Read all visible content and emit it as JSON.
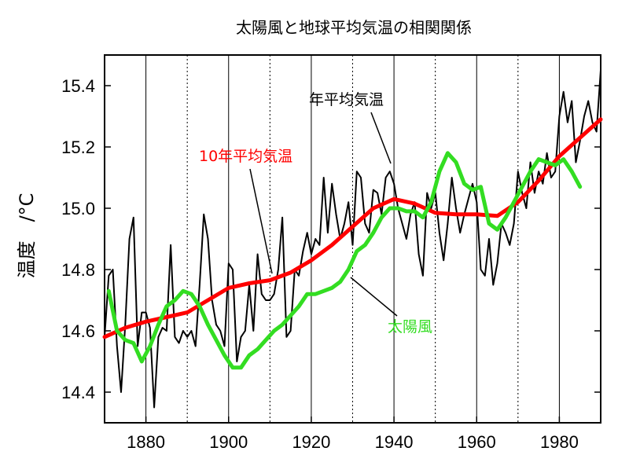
{
  "chart_data": {
    "type": "line",
    "title": "太陽風と地球平均気温の相関関係",
    "xlabel": "",
    "ylabel": "温度　/°C",
    "xlim": [
      1870,
      1990
    ],
    "ylim": [
      14.3,
      15.5
    ],
    "x_ticks": [
      1880,
      1900,
      1920,
      1940,
      1960,
      1980
    ],
    "y_ticks": [
      14.4,
      14.6,
      14.8,
      15.0,
      15.2,
      15.4
    ],
    "grid": "vertical lines every 10 years (solid at 20-year marks, dotted between)",
    "annotations": [
      {
        "text": "年平均気温",
        "color": "#000000"
      },
      {
        "text": "10年平均気温",
        "color": "#ff0000"
      },
      {
        "text": "太陽風",
        "color": "#33dd22"
      }
    ],
    "series": [
      {
        "name": "年平均気温",
        "color": "#000000",
        "x": [
          1870,
          1871,
          1872,
          1873,
          1874,
          1875,
          1876,
          1877,
          1878,
          1879,
          1880,
          1881,
          1882,
          1883,
          1884,
          1885,
          1886,
          1887,
          1888,
          1889,
          1890,
          1891,
          1892,
          1893,
          1894,
          1895,
          1896,
          1897,
          1898,
          1899,
          1900,
          1901,
          1902,
          1903,
          1904,
          1905,
          1906,
          1907,
          1908,
          1909,
          1910,
          1911,
          1912,
          1913,
          1914,
          1915,
          1916,
          1917,
          1918,
          1919,
          1920,
          1921,
          1922,
          1923,
          1924,
          1925,
          1926,
          1927,
          1928,
          1929,
          1930,
          1931,
          1932,
          1933,
          1934,
          1935,
          1936,
          1937,
          1938,
          1939,
          1940,
          1941,
          1942,
          1943,
          1944,
          1945,
          1946,
          1947,
          1948,
          1949,
          1950,
          1951,
          1952,
          1953,
          1954,
          1955,
          1956,
          1957,
          1958,
          1959,
          1960,
          1961,
          1962,
          1963,
          1964,
          1965,
          1966,
          1967,
          1968,
          1969,
          1970,
          1971,
          1972,
          1973,
          1974,
          1975,
          1976,
          1977,
          1978,
          1979,
          1980,
          1981,
          1982,
          1983,
          1984,
          1985,
          1986,
          1987,
          1988,
          1989,
          1990
        ],
        "values": [
          14.58,
          14.78,
          14.8,
          14.55,
          14.4,
          14.62,
          14.9,
          14.97,
          14.55,
          14.66,
          14.66,
          14.61,
          14.35,
          14.58,
          14.61,
          14.6,
          14.88,
          14.58,
          14.56,
          14.6,
          14.58,
          14.6,
          14.55,
          14.75,
          14.98,
          14.9,
          14.7,
          14.62,
          14.6,
          14.55,
          14.82,
          14.8,
          14.5,
          14.58,
          14.6,
          14.75,
          14.6,
          14.85,
          14.72,
          14.7,
          14.7,
          14.72,
          14.8,
          14.97,
          14.58,
          14.6,
          14.8,
          14.78,
          14.86,
          14.92,
          14.85,
          14.9,
          14.88,
          15.1,
          14.92,
          15.08,
          14.98,
          14.9,
          14.95,
          15.02,
          14.88,
          15.12,
          15.1,
          14.95,
          14.92,
          15.06,
          15.05,
          14.98,
          15.1,
          15.12,
          15.08,
          15.0,
          14.95,
          14.9,
          14.98,
          15.02,
          14.85,
          14.78,
          15.05,
          15.0,
          15.05,
          14.92,
          14.83,
          14.95,
          15.1,
          15.0,
          14.92,
          14.98,
          15.03,
          15.08,
          15.02,
          14.8,
          14.78,
          14.9,
          14.75,
          14.82,
          14.95,
          14.92,
          14.88,
          14.95,
          15.12,
          15.05,
          15.0,
          15.15,
          15.05,
          15.12,
          15.08,
          15.18,
          15.1,
          15.12,
          15.3,
          15.38,
          15.28,
          15.35,
          15.15,
          15.22,
          15.3,
          15.35,
          15.28,
          15.25,
          15.45
        ]
      },
      {
        "name": "10年平均気温",
        "color": "#ff0000",
        "x": [
          1870,
          1875,
          1880,
          1885,
          1890,
          1895,
          1900,
          1905,
          1910,
          1915,
          1920,
          1925,
          1930,
          1935,
          1940,
          1945,
          1950,
          1955,
          1960,
          1965,
          1970,
          1975,
          1980,
          1985,
          1990
        ],
        "values": [
          14.58,
          14.61,
          14.63,
          14.645,
          14.66,
          14.7,
          14.74,
          14.755,
          14.765,
          14.79,
          14.83,
          14.88,
          14.94,
          15.0,
          15.03,
          15.015,
          14.985,
          14.98,
          14.98,
          14.975,
          15.02,
          15.09,
          15.17,
          15.23,
          15.29
        ]
      },
      {
        "name": "太陽風",
        "color": "#33dd22",
        "x": [
          1871,
          1873,
          1875,
          1877,
          1879,
          1881,
          1883,
          1885,
          1887,
          1889,
          1891,
          1893,
          1895,
          1897,
          1899,
          1901,
          1903,
          1905,
          1907,
          1909,
          1911,
          1913,
          1915,
          1917,
          1919,
          1921,
          1923,
          1925,
          1927,
          1929,
          1931,
          1933,
          1935,
          1937,
          1939,
          1941,
          1943,
          1945,
          1947,
          1949,
          1951,
          1953,
          1955,
          1957,
          1959,
          1961,
          1963,
          1965,
          1967,
          1969,
          1971,
          1973,
          1975,
          1977,
          1979,
          1981,
          1983,
          1985
        ],
        "values": [
          14.73,
          14.6,
          14.57,
          14.56,
          14.5,
          14.55,
          14.62,
          14.68,
          14.7,
          14.73,
          14.72,
          14.68,
          14.62,
          14.57,
          14.52,
          14.48,
          14.48,
          14.52,
          14.54,
          14.57,
          14.6,
          14.62,
          14.65,
          14.68,
          14.72,
          14.72,
          14.73,
          14.74,
          14.76,
          14.8,
          14.86,
          14.88,
          14.92,
          14.97,
          15.0,
          15.0,
          14.99,
          14.99,
          14.97,
          15.02,
          15.12,
          15.18,
          15.15,
          15.08,
          15.06,
          15.07,
          14.95,
          14.93,
          14.97,
          15.02,
          15.07,
          15.12,
          15.16,
          15.15,
          15.14,
          15.16,
          15.12,
          15.07
        ]
      }
    ]
  }
}
